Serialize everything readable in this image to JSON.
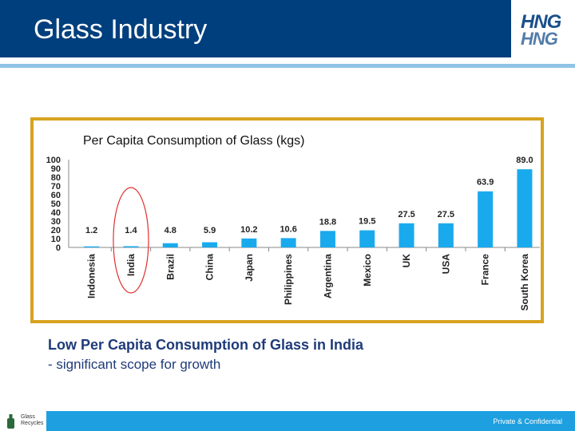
{
  "header": {
    "title": "Glass Industry",
    "logo_top": "HNG",
    "logo_bottom": "HNG"
  },
  "colors": {
    "header_bg": "#003f7d",
    "bar": "#19aaee",
    "frame": "#d7a31f",
    "highlight_oval": "#e03030",
    "footer_bg": "#1ea0e0"
  },
  "chart_data": {
    "type": "bar",
    "title": "Per Capita Consumption of Glass (kgs)",
    "categories": [
      "Indonesia",
      "India",
      "Brazil",
      "China",
      "Japan",
      "Philippines",
      "Argentina",
      "Mexico",
      "UK",
      "USA",
      "France",
      "South Korea"
    ],
    "values": [
      1.2,
      1.4,
      4.8,
      5.9,
      10.2,
      10.6,
      18.8,
      19.5,
      27.5,
      27.5,
      63.9,
      89.0
    ],
    "value_labels": [
      "1.2",
      "1.4",
      "4.8",
      "5.9",
      "10.2",
      "10.6",
      "18.8",
      "19.5",
      "27.5",
      "27.5",
      "63.9",
      "89.0"
    ],
    "ylim": [
      0,
      100
    ],
    "yticks": [
      "0",
      "10",
      "20",
      "30",
      "40",
      "50",
      "60",
      "70",
      "80",
      "90",
      "100"
    ],
    "xlabel": "",
    "ylabel": "",
    "grid": false,
    "legend": "none",
    "highlighted_category": "India"
  },
  "notes": {
    "title": "Low Per Capita Consumption of Glass in India",
    "subtitle": "- significant scope for growth"
  },
  "footer": {
    "logo_text": "Glass Recycles",
    "confidential": "Private & Confidential"
  }
}
